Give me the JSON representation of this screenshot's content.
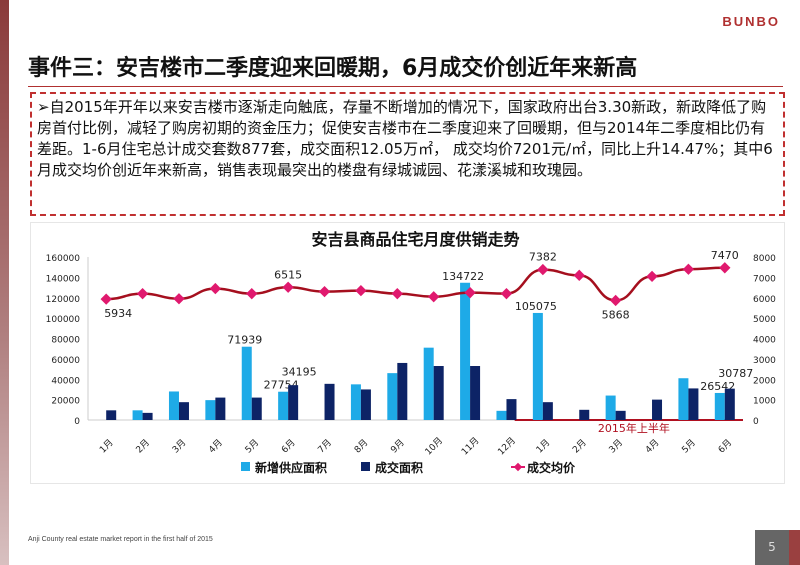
{
  "header": {
    "logo": "BUNBO",
    "title": "事件三：安吉楼市二季度迎来回暖期，6月成交价创近年来新高"
  },
  "summary": "自2015年开年以来安吉楼市逐渐走向触底，存量不断增加的情况下，国家政府出台3.30新政，新政降低了购房首付比例，减轻了购房初期的资金压力；促使安吉楼市在二季度迎来了回暖期，但与2014年二季度相比仍有差距。1-6月住宅总计成交套数877套，成交面积12.05万㎡， 成交均价7201元/㎡，同比上升14.47%；其中6月成交均价创近年来新高，销售表现最突出的楼盘有绿城诚园、花漾溪城和玫瑰园。",
  "footer": {
    "text": "Anji County real estate market report in the first half of 2015",
    "page": "5"
  },
  "chart_data": {
    "type": "bar",
    "title": "安吉县商品住宅月度供销走势",
    "categories": [
      "1月",
      "2月",
      "3月",
      "4月",
      "5月",
      "6月",
      "7月",
      "8月",
      "9月",
      "10月",
      "11月",
      "12月",
      "1月",
      "2月",
      "3月",
      "4月",
      "5月",
      "6月"
    ],
    "annotation": "2015年上半年",
    "left_axis": {
      "ylim": [
        0,
        160000
      ],
      "ticks": [
        "0",
        "20000",
        "40000",
        "60000",
        "80000",
        "100000",
        "120000",
        "140000",
        "160000"
      ]
    },
    "right_axis": {
      "ylim": [
        0,
        8000
      ],
      "ticks": [
        "0",
        "1000",
        "2000",
        "3000",
        "4000",
        "5000",
        "6000",
        "7000",
        "8000"
      ]
    },
    "legend_position": "bottom",
    "series": [
      {
        "name": "新增供应面积",
        "type": "bar",
        "axis": "left",
        "color": "#1eaae7",
        "values": [
          0,
          9500,
          28000,
          19500,
          71939,
          27754,
          0,
          35000,
          46000,
          71000,
          134722,
          9000,
          105075,
          0,
          24000,
          0,
          41000,
          26542
        ],
        "labels": {
          "4": "71939",
          "5": "27754",
          "10": "134722",
          "12": "105075",
          "17": "26542"
        }
      },
      {
        "name": "成交面积",
        "type": "bar",
        "axis": "left",
        "color": "#0d2366",
        "values": [
          9500,
          7000,
          17500,
          22000,
          22000,
          34195,
          35500,
          30000,
          56000,
          53000,
          53000,
          20500,
          17500,
          10000,
          9000,
          20000,
          31000,
          30787
        ],
        "labels": {
          "5": "34195",
          "17": "30787"
        }
      },
      {
        "name": "成交均价",
        "type": "line",
        "axis": "right",
        "color": "#e0196e",
        "line_color": "#a50f1e",
        "values": [
          5934,
          6200,
          5950,
          6450,
          6200,
          6515,
          6300,
          6350,
          6200,
          6050,
          6250,
          6200,
          7382,
          7100,
          5868,
          7050,
          7400,
          7470
        ],
        "labels": {
          "0": "5934",
          "5": "6515",
          "12": "7382",
          "14": "5868",
          "17": "7470"
        }
      }
    ]
  }
}
